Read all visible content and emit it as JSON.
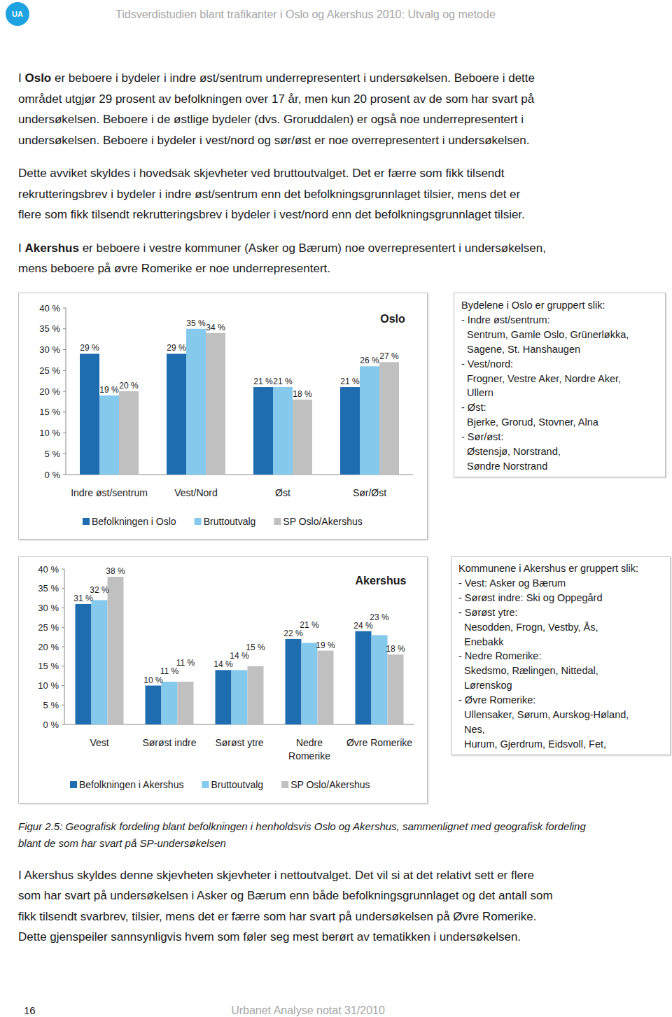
{
  "header": {
    "logo": "UA",
    "title": "Tidsverdistudien blant trafikanter i Oslo og Akershus 2010: Utvalg og metode"
  },
  "body": [
    [
      [
        {
          "text": "I "
        },
        {
          "text": "Oslo",
          "bold": true
        },
        {
          "text": " er beboere i bydeler i indre øst/sentrum underrepresentert i undersøkelsen. Beboere i dette"
        }
      ],
      [
        {
          "text": "området utgjør 29 prosent av befolkningen over 17 år, men kun 20 prosent av de som har svart på"
        }
      ],
      [
        {
          "text": "undersøkelsen. Beboere i de østlige bydeler (dvs. Groruddalen) er også noe underrepresentert i"
        }
      ],
      [
        {
          "text": "undersøkelsen. Beboere i bydeler i vest/nord og sør/øst er noe overrepresentert i undersøkelsen."
        }
      ]
    ],
    [
      [
        {
          "text": "Dette avviket skyldes i hovedsak skjevheter ved bruttoutvalget. Det er færre som fikk tilsendt"
        }
      ],
      [
        {
          "text": "rekrutteringsbrev i bydeler i indre øst/sentrum enn det befolkningsgrunnlaget tilsier, mens det er"
        }
      ],
      [
        {
          "text": "flere som fikk tilsendt rekrutteringsbrev i bydeler i vest/nord enn det befolkningsgrunnlaget tilsier."
        }
      ]
    ],
    [
      [
        {
          "text": "I "
        },
        {
          "text": "Akershus",
          "bold": true
        },
        {
          "text": " er beboere i vestre kommuner (Asker og Bærum) noe overrepresentert i undersøkelsen,"
        }
      ],
      [
        {
          "text": "mens beboere på øvre Romerike er noe underrepresentert."
        }
      ]
    ]
  ],
  "chart_data": [
    {
      "type": "bar",
      "title": "Oslo",
      "categories": [
        "Indre øst/sentrum",
        "Vest/Nord",
        "Øst",
        "Sør/Øst"
      ],
      "series": [
        {
          "name": "Befolkningen i Oslo",
          "color": "#1f6db1",
          "values": [
            29,
            29,
            21,
            21
          ],
          "value_labels": [
            "29 %",
            "29 %",
            "21 %",
            "21 %"
          ]
        },
        {
          "name": "Bruttoutvalg",
          "color": "#85c9ec",
          "values": [
            19,
            35,
            21,
            26
          ],
          "value_labels": [
            "19 %",
            "35 %",
            "21 %",
            "26 %"
          ]
        },
        {
          "name": "SP Oslo/Akershus",
          "color": "#c0c0c0",
          "values": [
            20,
            34,
            18,
            27
          ],
          "value_labels": [
            "20 %",
            "34 %",
            "18 %",
            "27 %"
          ]
        }
      ],
      "ylim": [
        0,
        40
      ],
      "yticks": [
        {
          "value": 0,
          "label": "0 %"
        },
        {
          "value": 5,
          "label": "5 %"
        },
        {
          "value": 10,
          "label": "10 %"
        },
        {
          "value": 15,
          "label": "15 %"
        },
        {
          "value": 20,
          "label": "20 %"
        },
        {
          "value": 25,
          "label": "25 %"
        },
        {
          "value": 30,
          "label": "30 %"
        },
        {
          "value": 35,
          "label": "35 %"
        },
        {
          "value": 40,
          "label": "40 %"
        }
      ],
      "grid": false,
      "legend": "bottom",
      "data_labels": true
    },
    {
      "type": "bar",
      "title": "Akershus",
      "categories": [
        "Vest",
        "Sørøst indre",
        "Sørøst ytre",
        "Nedre\nRomerike",
        "Øvre Romerike"
      ],
      "series": [
        {
          "name": "Befolkningen i Akershus",
          "color": "#1f6db1",
          "values": [
            31,
            10,
            14,
            22,
            24
          ],
          "value_labels": [
            "31 %",
            "10 %",
            "14 %",
            "22 %",
            "24 %"
          ]
        },
        {
          "name": "Bruttoutvalg",
          "color": "#85c9ec",
          "values": [
            32,
            11,
            14,
            21,
            23
          ],
          "value_labels": [
            "32 %",
            "11 %",
            "14 %",
            "21 %",
            "23 %"
          ]
        },
        {
          "name": "SP Oslo/Akershus",
          "color": "#c0c0c0",
          "values": [
            38,
            11,
            15,
            19,
            18
          ],
          "value_labels": [
            "38 %",
            "11 %",
            "15 %",
            "19 %",
            "18 %"
          ]
        }
      ],
      "ylim": [
        0,
        40
      ],
      "yticks": [
        {
          "value": 0,
          "label": "0 %"
        },
        {
          "value": 5,
          "label": "5 %"
        },
        {
          "value": 10,
          "label": "10 %"
        },
        {
          "value": 15,
          "label": "15 %"
        },
        {
          "value": 20,
          "label": "20 %"
        },
        {
          "value": 25,
          "label": "25 %"
        },
        {
          "value": 30,
          "label": "30 %"
        },
        {
          "value": 35,
          "label": "35 %"
        },
        {
          "value": 40,
          "label": "40 %"
        }
      ],
      "grid": false,
      "legend": "bottom",
      "data_labels": true
    }
  ],
  "notes": [
    [
      "Bydelene i Oslo er gruppert slik:",
      "- Indre øst/sentrum:",
      "Sentrum, Gamle Oslo, Grünerløkka,",
      "Sagene, St. Hanshaugen",
      "- Vest/nord:",
      "Frogner, Vestre Aker, Nordre Aker,",
      "Ullern",
      "- Øst:",
      "Bjerke, Grorud, Stovner, Alna",
      "- Sør/øst:",
      "Østensjø, Norstrand,",
      "Søndre Norstrand"
    ],
    [
      "Kommunene i Akershus er gruppert slik:",
      "- Vest: Asker og Bærum",
      "- Sørøst indre: Ski og Oppegård",
      "- Sørøst ytre:",
      "Nesodden, Frogn, Vestby, Ås,",
      "Enebakk",
      "- Nedre Romerike:",
      "Skedsmo, Rælingen, Nittedal,",
      "Lørenskog",
      "- Øvre Romerike:",
      "Ullensaker, Sørum, Aurskog-Høland,",
      "Nes,",
      "Hurum, Gjerdrum, Eidsvoll, Fet,"
    ]
  ],
  "caption": [
    "Figur 2.5: Geografisk fordeling blant befolkningen i henholdsvis Oslo og Akershus, sammenlignet med geografisk fordeling",
    "blant de som har svart på SP-undersøkelsen"
  ],
  "body_after": [
    [
      [
        {
          "text": "I Akershus skyldes denne skjevheten skjevheter i nettoutvalget. Det vil si at det relativt sett er flere"
        }
      ],
      [
        {
          "text": "som har svart på undersøkelsen i Asker og Bærum enn både befolkningsgrunnlaget og det antall som"
        }
      ],
      [
        {
          "text": "fikk tilsendt svarbrev, tilsier, mens det er færre som har svart på undersøkelsen på Øvre Romerike."
        }
      ],
      [
        {
          "text": "Dette gjenspeiler sannsynligvis hvem som føler seg mest berørt av tematikken i undersøkelsen."
        }
      ]
    ]
  ],
  "footer": {
    "page": "16",
    "publication": "Urbanet Analyse notat 31/2010"
  }
}
